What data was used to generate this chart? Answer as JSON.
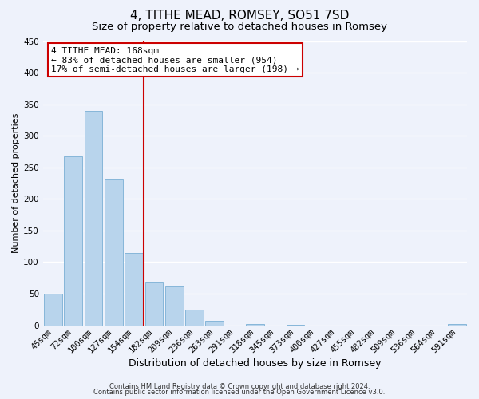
{
  "title": "4, TITHE MEAD, ROMSEY, SO51 7SD",
  "subtitle": "Size of property relative to detached houses in Romsey",
  "xlabel": "Distribution of detached houses by size in Romsey",
  "ylabel": "Number of detached properties",
  "bar_labels": [
    "45sqm",
    "72sqm",
    "100sqm",
    "127sqm",
    "154sqm",
    "182sqm",
    "209sqm",
    "236sqm",
    "263sqm",
    "291sqm",
    "318sqm",
    "345sqm",
    "373sqm",
    "400sqm",
    "427sqm",
    "455sqm",
    "482sqm",
    "509sqm",
    "536sqm",
    "564sqm",
    "591sqm"
  ],
  "bar_values": [
    50,
    268,
    340,
    232,
    114,
    68,
    62,
    25,
    7,
    0,
    2,
    0,
    1,
    0,
    0,
    0,
    0,
    0,
    0,
    0,
    2
  ],
  "bar_color": "#b8d4ec",
  "bar_edge_color": "#7aafd4",
  "vline_color": "#cc0000",
  "annotation_text": "4 TITHE MEAD: 168sqm\n← 83% of detached houses are smaller (954)\n17% of semi-detached houses are larger (198) →",
  "annotation_box_color": "#ffffff",
  "annotation_box_edge": "#cc0000",
  "ylim": [
    0,
    450
  ],
  "yticks": [
    0,
    50,
    100,
    150,
    200,
    250,
    300,
    350,
    400,
    450
  ],
  "footer1": "Contains HM Land Registry data © Crown copyright and database right 2024.",
  "footer2": "Contains public sector information licensed under the Open Government Licence v3.0.",
  "bg_color": "#eef2fb",
  "grid_color": "#ffffff",
  "title_fontsize": 11,
  "subtitle_fontsize": 9.5,
  "xlabel_fontsize": 9,
  "ylabel_fontsize": 8,
  "tick_fontsize": 7.5,
  "annotation_fontsize": 8,
  "footer_fontsize": 6
}
